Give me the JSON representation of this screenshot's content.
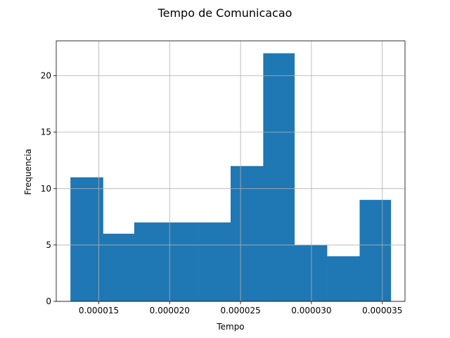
{
  "chart_data": {
    "type": "bar",
    "subtype": "histogram",
    "title": "Tempo de Comunicacao",
    "xlabel": "Tempo",
    "ylabel": "Frequencia",
    "bin_edges": [
      1.3e-05,
      1.53e-05,
      1.75e-05,
      1.98e-05,
      2.2e-05,
      2.43e-05,
      2.66e-05,
      2.88e-05,
      3.11e-05,
      3.34e-05,
      3.56e-05
    ],
    "values": [
      11,
      6,
      7,
      7,
      7,
      12,
      22,
      5,
      4,
      9
    ],
    "xlim": [
      1.2e-05,
      3.66e-05
    ],
    "ylim": [
      0,
      23.1
    ],
    "xticks": [
      {
        "value": 1.5e-05,
        "label": "0.000015"
      },
      {
        "value": 2e-05,
        "label": "0.000020"
      },
      {
        "value": 2.5e-05,
        "label": "0.000025"
      },
      {
        "value": 3e-05,
        "label": "0.000030"
      },
      {
        "value": 3.5e-05,
        "label": "0.000035"
      }
    ],
    "yticks": [
      {
        "value": 0,
        "label": "0"
      },
      {
        "value": 5,
        "label": "5"
      },
      {
        "value": 10,
        "label": "10"
      },
      {
        "value": 15,
        "label": "15"
      },
      {
        "value": 20,
        "label": "20"
      }
    ],
    "grid": true,
    "bar_color": "#1f77b4",
    "grid_color": "#b0b0b0"
  }
}
